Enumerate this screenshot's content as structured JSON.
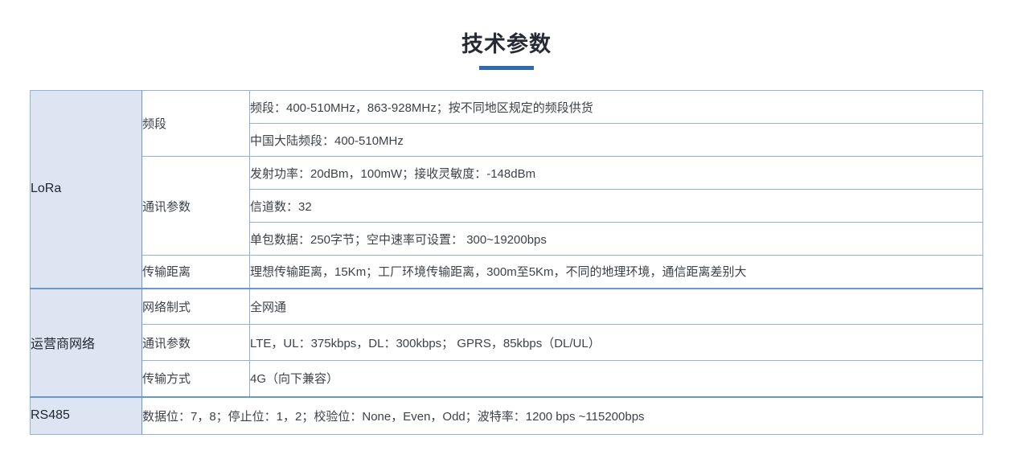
{
  "page": {
    "title": "技术参数"
  },
  "table": {
    "sections": [
      {
        "label": "LoRa",
        "groups": [
          {
            "label": "频段",
            "rows": [
              "频段：400-510MHz，863-928MHz；按不同地区规定的频段供货",
              "中国大陆频段：400-510MHz"
            ]
          },
          {
            "label": "通讯参数",
            "rows": [
              "发射功率：20dBm，100mW；接收灵敏度：-148dBm",
              "信道数：32",
              "单包数据：250字节；空中速率可设置： 300~19200bps"
            ]
          },
          {
            "label": "传输距离",
            "rows": [
              "理想传输距离，15Km；工厂环境传输距离，300m至5Km，不同的地理环境，通信距离差别大"
            ]
          }
        ]
      },
      {
        "label": "运营商网络",
        "groups": [
          {
            "label": "网络制式",
            "rows": [
              "全网通"
            ]
          },
          {
            "label": "通讯参数",
            "rows": [
              "LTE，UL：375kbps，DL：300kbps； GPRS，85kbps（DL/UL）"
            ]
          },
          {
            "label": "传输方式",
            "rows": [
              "4G（向下兼容）"
            ]
          }
        ]
      },
      {
        "label": "RS485",
        "full_row": "数据位：7，8；停止位：1，2；校验位：None，Even，Odd；波特率：1200 bps ~115200bps"
      }
    ]
  },
  "colors": {
    "accent": "#2e6bad",
    "border-strong": "#6b97cf",
    "border-light": "#8fb2de",
    "label-bg": "#dde5f3",
    "title-text": "#262b33",
    "body-text": "#3d4249"
  }
}
